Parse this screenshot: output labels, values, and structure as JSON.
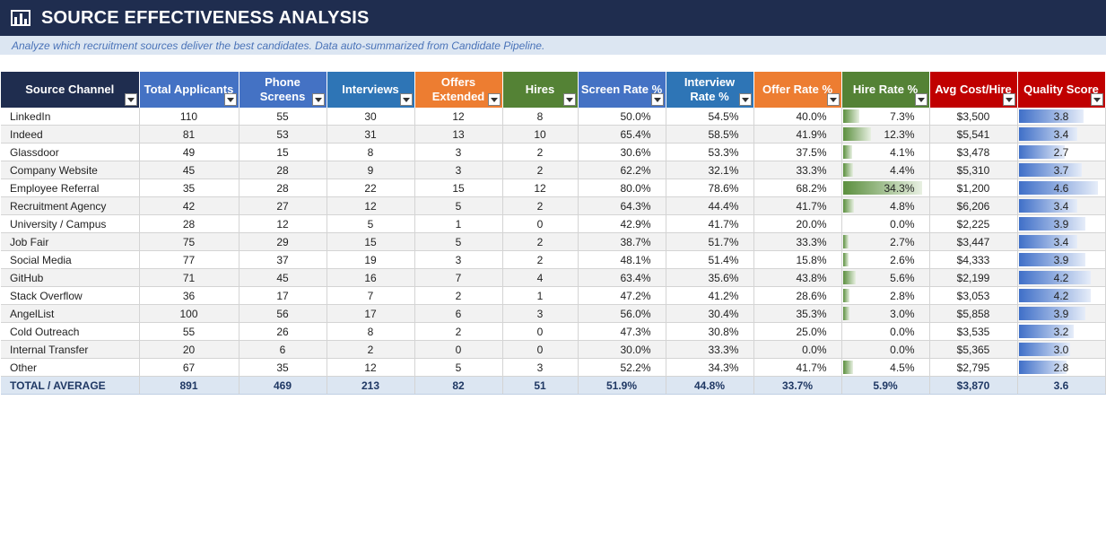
{
  "header": {
    "title": "SOURCE EFFECTIVENESS ANALYSIS",
    "subtitle": "Analyze which recruitment sources deliver the best candidates. Data auto-summarized from Candidate Pipeline."
  },
  "colors": {
    "title_bg": "#1f2d4f",
    "subtitle_bg": "#dce6f2",
    "source_header": "#1f2d4f",
    "blue_header": "#4472c4",
    "dark_blue_header": "#2e75b6",
    "orange_header": "#ed7d31",
    "green_header": "#548235",
    "red_header": "#c00000",
    "hire_rate_bar": "#5b8f3e",
    "quality_bar": "#3f6fc8"
  },
  "columns": [
    {
      "label": "Source Channel"
    },
    {
      "label": "Total Applicants"
    },
    {
      "label": "Phone\nScreens"
    },
    {
      "label": "Interviews"
    },
    {
      "label": "Offers\nExtended"
    },
    {
      "label": "Hires"
    },
    {
      "label": "Screen Rate %"
    },
    {
      "label": "Interview\nRate %"
    },
    {
      "label": "Offer Rate %"
    },
    {
      "label": "Hire Rate %"
    },
    {
      "label": "Avg Cost/Hire"
    },
    {
      "label": "Quality Score"
    }
  ],
  "rows": [
    {
      "source": "LinkedIn",
      "applicants": "110",
      "phone": "55",
      "interviews": "30",
      "offers": "12",
      "hires": "8",
      "screen": "50.0%",
      "interview_rate": "54.5%",
      "offer_rate": "40.0%",
      "hire_rate": "7.3%",
      "cost": "$3,500",
      "quality": "3.8"
    },
    {
      "source": "Indeed",
      "applicants": "81",
      "phone": "53",
      "interviews": "31",
      "offers": "13",
      "hires": "10",
      "screen": "65.4%",
      "interview_rate": "58.5%",
      "offer_rate": "41.9%",
      "hire_rate": "12.3%",
      "cost": "$5,541",
      "quality": "3.4"
    },
    {
      "source": "Glassdoor",
      "applicants": "49",
      "phone": "15",
      "interviews": "8",
      "offers": "3",
      "hires": "2",
      "screen": "30.6%",
      "interview_rate": "53.3%",
      "offer_rate": "37.5%",
      "hire_rate": "4.1%",
      "cost": "$3,478",
      "quality": "2.7"
    },
    {
      "source": "Company Website",
      "applicants": "45",
      "phone": "28",
      "interviews": "9",
      "offers": "3",
      "hires": "2",
      "screen": "62.2%",
      "interview_rate": "32.1%",
      "offer_rate": "33.3%",
      "hire_rate": "4.4%",
      "cost": "$5,310",
      "quality": "3.7"
    },
    {
      "source": "Employee Referral",
      "applicants": "35",
      "phone": "28",
      "interviews": "22",
      "offers": "15",
      "hires": "12",
      "screen": "80.0%",
      "interview_rate": "78.6%",
      "offer_rate": "68.2%",
      "hire_rate": "34.3%",
      "cost": "$1,200",
      "quality": "4.6"
    },
    {
      "source": "Recruitment Agency",
      "applicants": "42",
      "phone": "27",
      "interviews": "12",
      "offers": "5",
      "hires": "2",
      "screen": "64.3%",
      "interview_rate": "44.4%",
      "offer_rate": "41.7%",
      "hire_rate": "4.8%",
      "cost": "$6,206",
      "quality": "3.4"
    },
    {
      "source": "University / Campus",
      "applicants": "28",
      "phone": "12",
      "interviews": "5",
      "offers": "1",
      "hires": "0",
      "screen": "42.9%",
      "interview_rate": "41.7%",
      "offer_rate": "20.0%",
      "hire_rate": "0.0%",
      "cost": "$2,225",
      "quality": "3.9"
    },
    {
      "source": "Job Fair",
      "applicants": "75",
      "phone": "29",
      "interviews": "15",
      "offers": "5",
      "hires": "2",
      "screen": "38.7%",
      "interview_rate": "51.7%",
      "offer_rate": "33.3%",
      "hire_rate": "2.7%",
      "cost": "$3,447",
      "quality": "3.4"
    },
    {
      "source": "Social Media",
      "applicants": "77",
      "phone": "37",
      "interviews": "19",
      "offers": "3",
      "hires": "2",
      "screen": "48.1%",
      "interview_rate": "51.4%",
      "offer_rate": "15.8%",
      "hire_rate": "2.6%",
      "cost": "$4,333",
      "quality": "3.9"
    },
    {
      "source": "GitHub",
      "applicants": "71",
      "phone": "45",
      "interviews": "16",
      "offers": "7",
      "hires": "4",
      "screen": "63.4%",
      "interview_rate": "35.6%",
      "offer_rate": "43.8%",
      "hire_rate": "5.6%",
      "cost": "$2,199",
      "quality": "4.2"
    },
    {
      "source": "Stack Overflow",
      "applicants": "36",
      "phone": "17",
      "interviews": "7",
      "offers": "2",
      "hires": "1",
      "screen": "47.2%",
      "interview_rate": "41.2%",
      "offer_rate": "28.6%",
      "hire_rate": "2.8%",
      "cost": "$3,053",
      "quality": "4.2"
    },
    {
      "source": "AngelList",
      "applicants": "100",
      "phone": "56",
      "interviews": "17",
      "offers": "6",
      "hires": "3",
      "screen": "56.0%",
      "interview_rate": "30.4%",
      "offer_rate": "35.3%",
      "hire_rate": "3.0%",
      "cost": "$5,858",
      "quality": "3.9"
    },
    {
      "source": "Cold Outreach",
      "applicants": "55",
      "phone": "26",
      "interviews": "8",
      "offers": "2",
      "hires": "0",
      "screen": "47.3%",
      "interview_rate": "30.8%",
      "offer_rate": "25.0%",
      "hire_rate": "0.0%",
      "cost": "$3,535",
      "quality": "3.2"
    },
    {
      "source": "Internal Transfer",
      "applicants": "20",
      "phone": "6",
      "interviews": "2",
      "offers": "0",
      "hires": "0",
      "screen": "30.0%",
      "interview_rate": "33.3%",
      "offer_rate": "0.0%",
      "hire_rate": "0.0%",
      "cost": "$5,365",
      "quality": "3.0"
    },
    {
      "source": "Other",
      "applicants": "67",
      "phone": "35",
      "interviews": "12",
      "offers": "5",
      "hires": "3",
      "screen": "52.2%",
      "interview_rate": "34.3%",
      "offer_rate": "41.7%",
      "hire_rate": "4.5%",
      "cost": "$2,795",
      "quality": "2.8"
    }
  ],
  "total": {
    "source": "TOTAL / AVERAGE",
    "applicants": "891",
    "phone": "469",
    "interviews": "213",
    "offers": "82",
    "hires": "51",
    "screen": "51.9%",
    "interview_rate": "44.8%",
    "offer_rate": "33.7%",
    "hire_rate": "5.9%",
    "cost": "$3,870",
    "quality": "3.6"
  }
}
